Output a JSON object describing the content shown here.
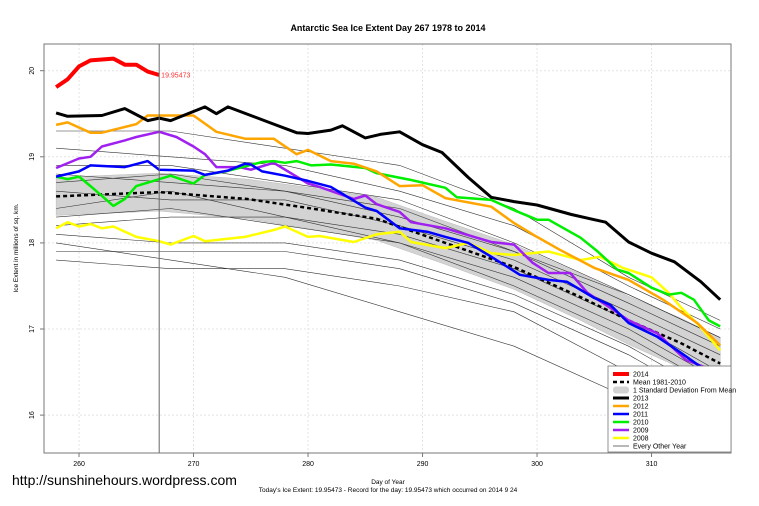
{
  "chart_data": {
    "type": "line",
    "title": "Antarctic Sea Ice Extent Day 267 1978 to 2014",
    "xlabel": "Day of Year",
    "ylabel": "Ice Extent in millions of sq. km.",
    "subtitle": "Today's Ice Extent: 19.95473  - Record for the day: 19.95473 which occurred on 2014 9 24",
    "xlim": [
      256.94,
      316.94
    ],
    "ylim": [
      15.56,
      20.31
    ],
    "x_ticks": [
      260,
      270,
      280,
      290,
      300,
      310
    ],
    "y_ticks": [
      16,
      17,
      18,
      19,
      20
    ],
    "grid": true,
    "legend_position": "bottom-right",
    "marker_day": 267,
    "annotation": {
      "day": 267,
      "value": 19.95473,
      "text": "19.95473"
    },
    "series": [
      {
        "name": "2014",
        "color": "#ff0000",
        "width": 4,
        "x": [
          258,
          259,
          260,
          261,
          263,
          264,
          265,
          266,
          267
        ],
        "y": [
          19.81,
          19.9,
          20.05,
          20.12,
          20.14,
          20.07,
          20.07,
          19.99,
          19.95
        ]
      },
      {
        "name": "2013",
        "color": "#000000",
        "width": 3,
        "x": [
          258,
          259,
          262,
          264,
          266,
          267,
          268,
          271,
          272,
          273,
          275,
          277,
          279,
          280,
          282,
          283,
          285,
          286.3,
          288,
          290,
          291.7,
          294,
          296,
          298,
          300,
          303,
          305,
          306,
          308,
          310,
          312,
          314.3,
          316
        ],
        "y": [
          19.51,
          19.47,
          19.48,
          19.56,
          19.42,
          19.45,
          19.42,
          19.58,
          19.5,
          19.58,
          19.48,
          19.38,
          19.28,
          19.27,
          19.31,
          19.36,
          19.22,
          19.26,
          19.29,
          19.14,
          19.05,
          18.76,
          18.53,
          18.48,
          18.44,
          18.33,
          18.27,
          18.24,
          18.01,
          17.88,
          17.78,
          17.55,
          17.34
        ]
      },
      {
        "name": "2012",
        "color": "#ffa500",
        "width": 2.5,
        "x": [
          258,
          259,
          261,
          262,
          265,
          266,
          270,
          272,
          274.5,
          277,
          279,
          280,
          282,
          284,
          286,
          288,
          290,
          292,
          296,
          298,
          300,
          302,
          305,
          308,
          311,
          314,
          316
        ],
        "y": [
          19.37,
          19.4,
          19.28,
          19.28,
          19.38,
          19.48,
          19.48,
          19.29,
          19.21,
          19.21,
          19.03,
          19.08,
          18.95,
          18.92,
          18.83,
          18.66,
          18.67,
          18.52,
          18.42,
          18.23,
          18.07,
          17.92,
          17.71,
          17.57,
          17.34,
          17.07,
          16.81
        ]
      },
      {
        "name": "2011",
        "color": "#0000ff",
        "width": 2.5,
        "x": [
          258,
          260,
          261,
          264,
          266,
          267,
          270,
          271,
          273,
          274.5,
          275,
          276,
          278,
          280,
          282,
          284,
          285,
          286,
          288,
          290.4,
          292,
          294,
          296,
          298.5,
          301,
          302.6,
          305,
          306.4,
          308,
          310.5,
          312.5,
          314.3,
          316
        ],
        "y": [
          18.77,
          18.83,
          18.9,
          18.88,
          18.95,
          18.85,
          18.84,
          18.79,
          18.84,
          18.92,
          18.91,
          18.83,
          18.78,
          18.72,
          18.65,
          18.49,
          18.41,
          18.37,
          18.17,
          18.13,
          18.07,
          18.0,
          17.84,
          17.63,
          17.57,
          17.55,
          17.36,
          17.28,
          17.07,
          16.91,
          16.73,
          16.56,
          16.41
        ]
      },
      {
        "name": "2010",
        "color": "#00ee00",
        "width": 2.5,
        "x": [
          258,
          259,
          260,
          261,
          263,
          264,
          265,
          267,
          268,
          270,
          271,
          272.8,
          276,
          277,
          278,
          279,
          280.3,
          282,
          285,
          286,
          289,
          292,
          293,
          296,
          298,
          300,
          301,
          303.8,
          305.3,
          307,
          308,
          310,
          311.5,
          312.6,
          313.7,
          315,
          316
        ],
        "y": [
          18.77,
          18.74,
          18.77,
          18.66,
          18.43,
          18.51,
          18.66,
          18.74,
          18.78,
          18.69,
          18.79,
          18.83,
          18.94,
          18.95,
          18.93,
          18.95,
          18.9,
          18.91,
          18.87,
          18.81,
          18.73,
          18.64,
          18.53,
          18.5,
          18.38,
          18.27,
          18.27,
          18.06,
          17.9,
          17.69,
          17.65,
          17.48,
          17.4,
          17.42,
          17.34,
          17.1,
          17.03
        ]
      },
      {
        "name": "2009",
        "color": "#a020f0",
        "width": 2.5,
        "x": [
          258,
          260,
          261,
          262,
          264,
          265,
          267,
          268.5,
          270,
          271,
          272,
          274,
          275,
          277,
          280,
          281,
          284,
          285,
          286,
          288,
          289,
          292,
          294,
          296,
          298,
          299.6,
          301,
          302.9,
          304.4,
          306.7,
          308,
          310.5,
          313,
          316
        ],
        "y": [
          18.87,
          18.98,
          19.0,
          19.12,
          19.19,
          19.23,
          19.29,
          19.23,
          19.12,
          19.03,
          18.88,
          18.88,
          18.85,
          18.93,
          18.69,
          18.65,
          18.51,
          18.55,
          18.45,
          18.36,
          18.24,
          18.17,
          18.09,
          18.01,
          17.98,
          17.77,
          17.65,
          17.65,
          17.42,
          17.22,
          17.1,
          16.95,
          16.64,
          16.49
        ]
      },
      {
        "name": "2008",
        "color": "#ffff00",
        "width": 2.5,
        "x": [
          258,
          259,
          260,
          261,
          262,
          263,
          265,
          267,
          268,
          270,
          271,
          274.5,
          277,
          278,
          280,
          281,
          284,
          286,
          288,
          289,
          292,
          294,
          296,
          298,
          301,
          303.8,
          305.5,
          307.5,
          310,
          311.5,
          312.5,
          314.3,
          316
        ],
        "y": [
          18.17,
          18.24,
          18.19,
          18.22,
          18.17,
          18.19,
          18.07,
          18.02,
          17.98,
          18.08,
          18.02,
          18.07,
          18.15,
          18.19,
          18.07,
          18.08,
          18.01,
          18.1,
          18.13,
          18.01,
          17.94,
          18.0,
          17.88,
          17.86,
          17.9,
          17.8,
          17.84,
          17.71,
          17.6,
          17.42,
          17.26,
          17.02,
          16.75
        ]
      }
    ],
    "mean": {
      "name": "Mean 1981-2010",
      "x": [
        258,
        267,
        274.7,
        280.3,
        286,
        292,
        298,
        303.8,
        308,
        312.5,
        316
      ],
      "y": [
        18.54,
        18.59,
        18.51,
        18.4,
        18.28,
        18.0,
        17.72,
        17.37,
        17.1,
        16.84,
        16.6
      ],
      "sd": [
        0.22,
        0.22,
        0.23,
        0.24,
        0.25,
        0.25,
        0.26,
        0.27,
        0.28,
        0.29,
        0.3
      ]
    },
    "sd_band_label": "1 Standard Deviation From Mean",
    "other_years": {
      "name": "Every Other Year",
      "x": [
        258,
        268,
        278,
        288,
        298,
        308,
        316
      ],
      "series": [
        [
          19.3,
          19.3,
          19.1,
          18.9,
          18.4,
          17.6,
          17.1
        ],
        [
          19.1,
          19.0,
          18.9,
          18.6,
          18.2,
          17.5,
          17.0
        ],
        [
          18.9,
          18.9,
          18.7,
          18.5,
          18.0,
          17.4,
          16.9
        ],
        [
          18.8,
          18.7,
          18.6,
          18.4,
          17.9,
          17.4,
          16.9
        ],
        [
          18.7,
          18.8,
          18.6,
          18.3,
          17.9,
          17.3,
          16.8
        ],
        [
          18.6,
          18.5,
          18.5,
          18.2,
          17.8,
          17.2,
          16.7
        ],
        [
          18.4,
          18.6,
          18.3,
          18.1,
          17.7,
          17.1,
          16.5
        ],
        [
          18.3,
          18.4,
          18.2,
          18.0,
          17.6,
          17.0,
          16.4
        ],
        [
          18.2,
          18.3,
          18.3,
          18.0,
          17.5,
          16.9,
          16.3
        ],
        [
          18.1,
          18.0,
          18.0,
          17.8,
          17.4,
          16.8,
          16.2
        ],
        [
          17.9,
          17.9,
          17.9,
          17.7,
          17.3,
          16.7,
          16.1
        ],
        [
          17.8,
          17.7,
          17.7,
          17.5,
          17.2,
          16.5,
          16.0
        ],
        [
          18.0,
          17.8,
          17.6,
          17.2,
          16.8,
          16.2,
          15.8
        ]
      ]
    }
  },
  "legend": [
    "2014",
    "Mean 1981-2010",
    "1 Standard Deviation From Mean",
    "2013",
    "2012",
    "2011",
    "2010",
    "2009",
    "2008",
    "Every Other Year"
  ],
  "credit": "http://sunshinehours.wordpress.com"
}
